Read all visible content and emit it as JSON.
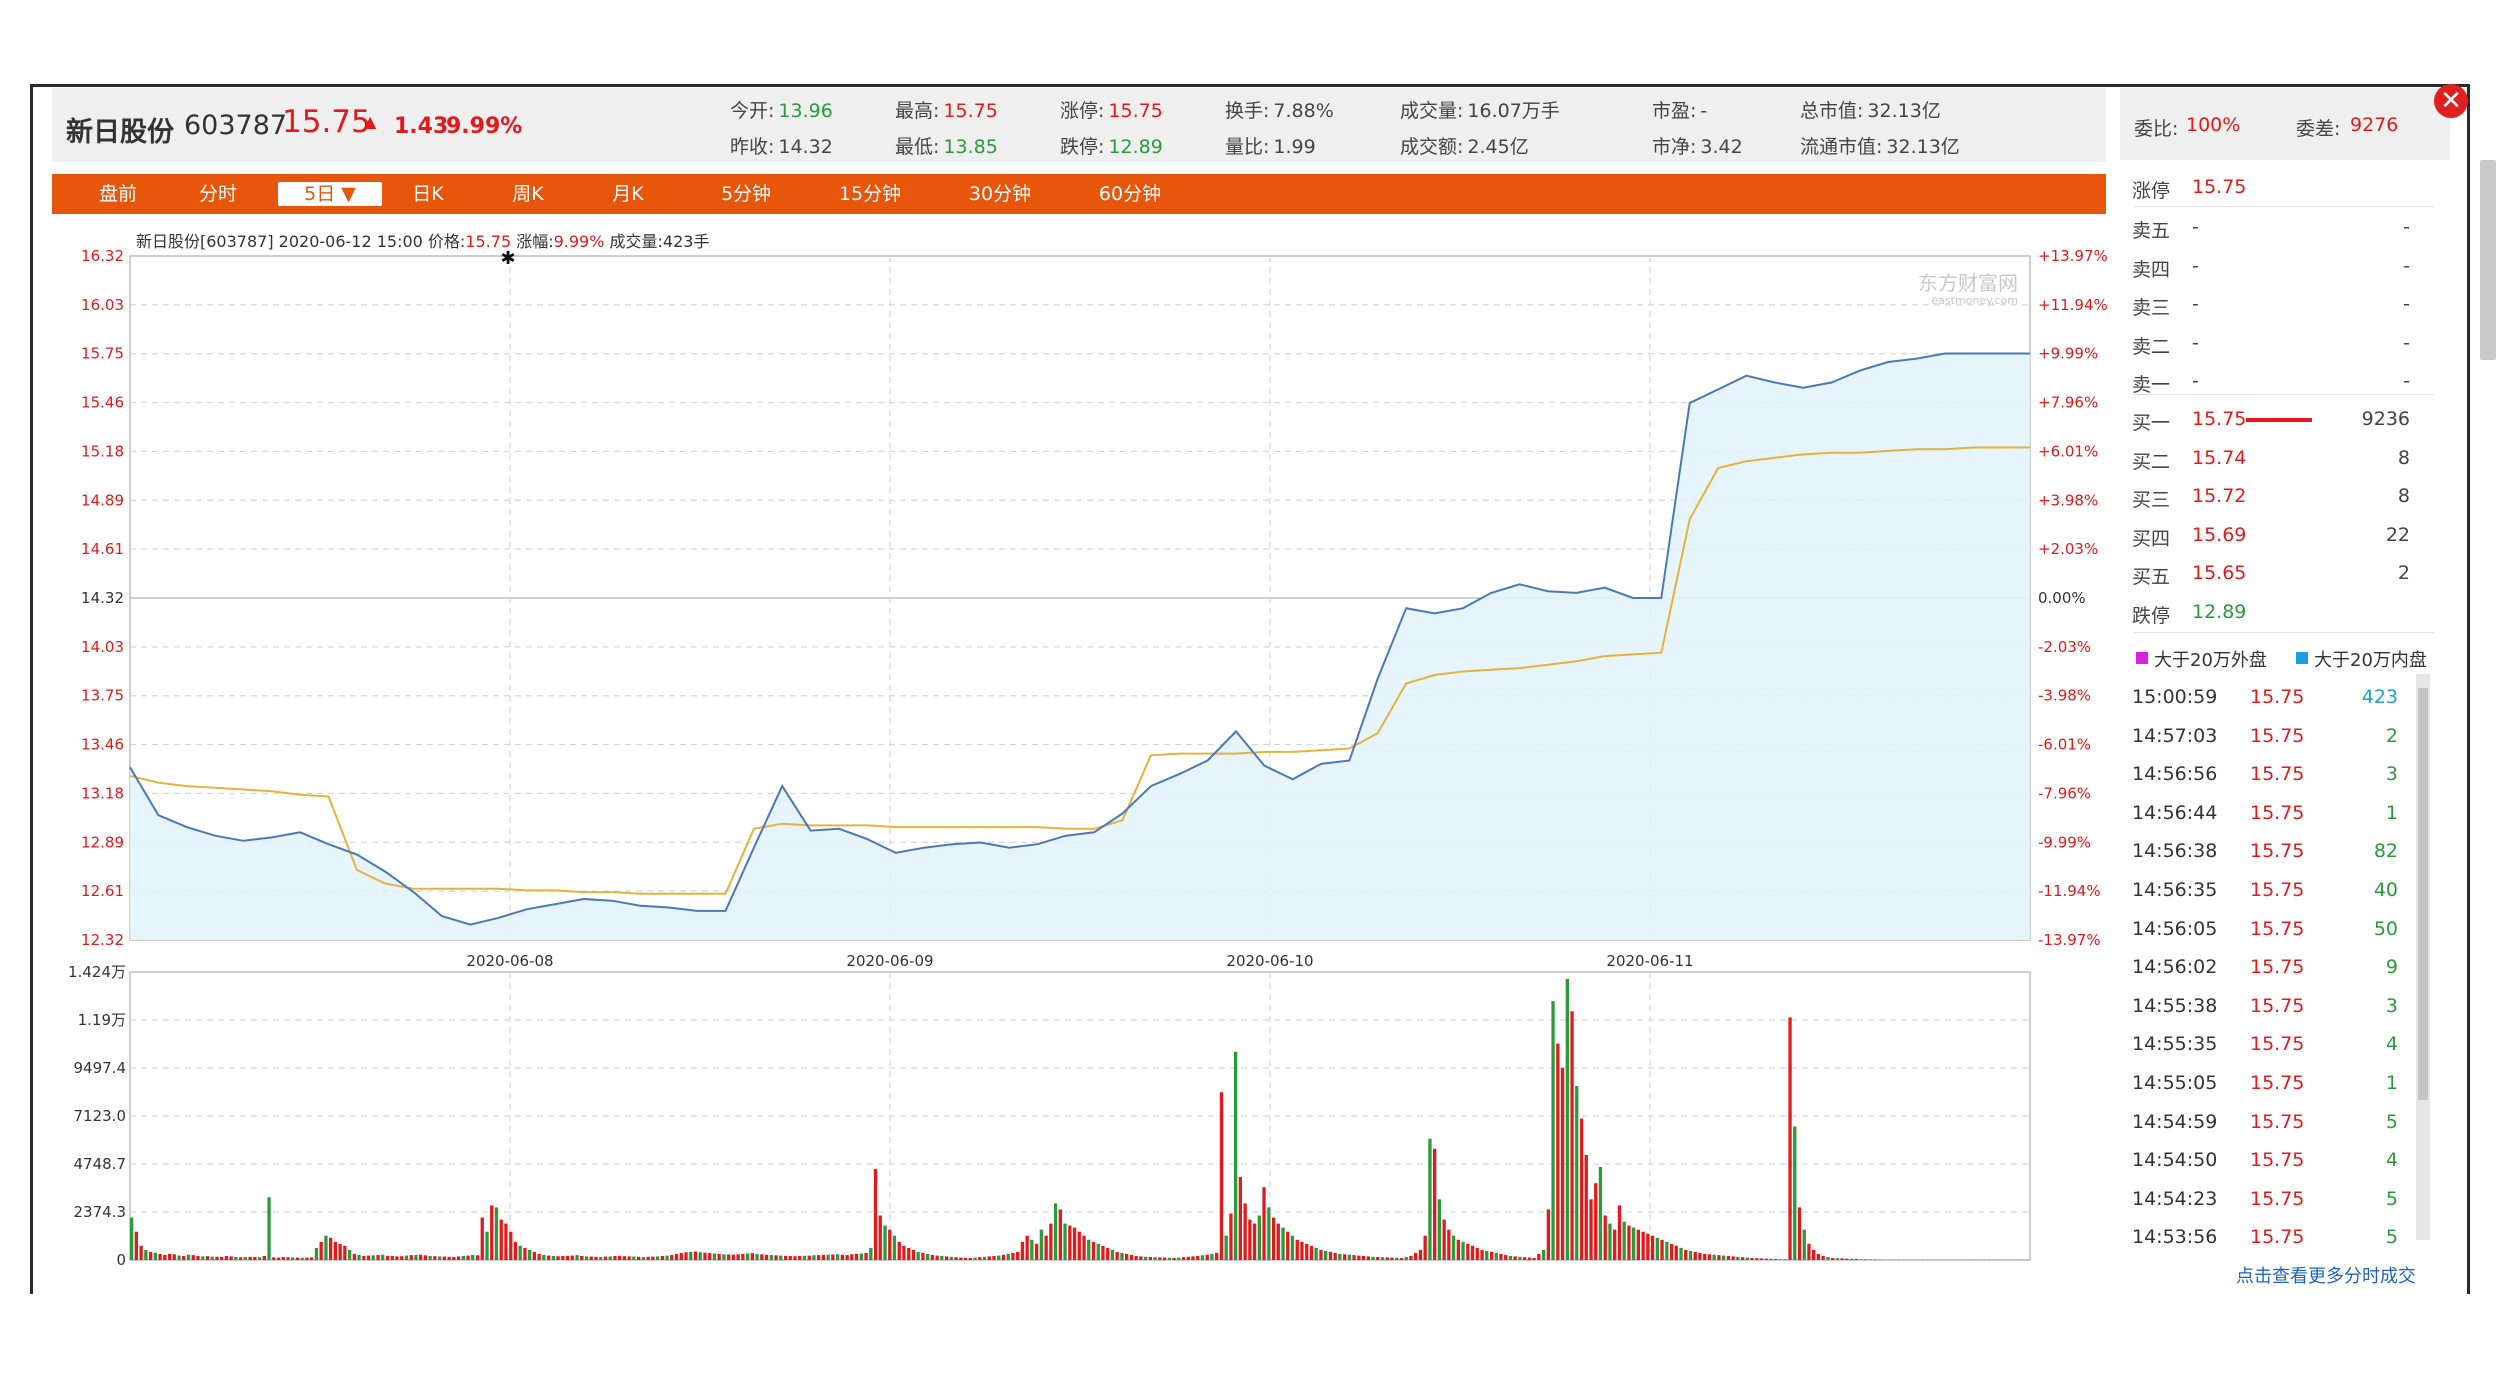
{
  "header": {
    "name": "新日股份",
    "code": "603787",
    "price": "15.75",
    "arrow": "▲",
    "change": "1.43",
    "pct": "9.99%",
    "quotes": [
      {
        "label": "今开:",
        "value": "13.96",
        "color": "green"
      },
      {
        "label": "昨收:",
        "value": "14.32",
        "color": "dark"
      },
      {
        "label": "最高:",
        "value": "15.75",
        "color": "red"
      },
      {
        "label": "最低:",
        "value": "13.85",
        "color": "green"
      },
      {
        "label": "涨停:",
        "value": "15.75",
        "color": "red"
      },
      {
        "label": "跌停:",
        "value": "12.89",
        "color": "green"
      },
      {
        "label": "换手:",
        "value": "7.88%",
        "color": "dark"
      },
      {
        "label": "量比:",
        "value": "1.99",
        "color": "dark"
      },
      {
        "label": "成交量:",
        "value": "16.07万手",
        "color": "dark"
      },
      {
        "label": "成交额:",
        "value": "2.45亿",
        "color": "dark"
      },
      {
        "label": "市盈:",
        "value": "-",
        "color": "dark"
      },
      {
        "label": "市净:",
        "value": "3.42",
        "color": "dark"
      },
      {
        "label": "总市值:",
        "value": "32.13亿",
        "color": "dark"
      },
      {
        "label": "流通市值:",
        "value": "32.13亿",
        "color": "dark"
      }
    ]
  },
  "tabs": [
    "盘前",
    "分时",
    "5日 ▼",
    "日K",
    "周K",
    "月K",
    "5分钟",
    "15分钟",
    "30分钟",
    "60分钟"
  ],
  "active_tab": 2,
  "info_line": {
    "prefix": "新日股份[603787]  2020-06-12 15:00  价格:",
    "price": "15.75",
    "mid": "  涨幅:",
    "pct": "9.99%",
    "suffix": "  成交量:423手"
  },
  "watermark": "东方财富网",
  "watermark_sub": "eastmoney.com",
  "colors": {
    "up": "#e3191c",
    "down": "#2a9a3a",
    "price_line": "#4a78b8",
    "avg_line": "#e6b23c",
    "fill": "#e3f3fb",
    "accent": "#e8560c"
  },
  "chart_data": [
    {
      "type": "line",
      "series": [
        {
          "values": [
            13.33,
            13.05,
            12.98,
            12.93,
            12.9,
            12.92,
            12.95,
            12.88,
            12.82,
            12.72,
            12.6,
            12.46,
            12.41,
            12.45,
            12.5,
            12.53,
            12.56,
            12.55,
            12.52,
            12.51,
            12.49,
            12.49,
            12.86,
            13.22,
            12.96,
            12.97,
            12.91,
            12.83,
            12.86,
            12.88,
            12.89,
            12.86,
            12.88,
            12.93,
            12.95,
            13.06,
            13.22,
            13.29,
            13.37,
            13.54,
            13.34,
            13.26,
            13.35,
            13.37,
            13.85,
            14.26,
            14.23,
            14.26,
            14.35,
            14.4,
            14.36,
            14.35,
            14.38,
            14.32,
            14.32,
            15.46,
            15.54,
            15.62,
            15.58,
            15.55,
            15.58,
            15.65,
            15.7,
            15.72,
            15.75,
            15.75,
            15.75,
            15.75
          ]
        },
        {
          "values": [
            13.28,
            13.24,
            13.22,
            13.21,
            13.2,
            13.19,
            13.17,
            13.16,
            12.73,
            12.65,
            12.62,
            12.62,
            12.62,
            12.62,
            12.61,
            12.61,
            12.6,
            12.6,
            12.59,
            12.59,
            12.59,
            12.59,
            12.97,
            13.0,
            12.99,
            12.99,
            12.99,
            12.98,
            12.98,
            12.98,
            12.98,
            12.98,
            12.98,
            12.97,
            12.97,
            13.02,
            13.4,
            13.41,
            13.41,
            13.41,
            13.42,
            13.42,
            13.43,
            13.44,
            13.53,
            13.82,
            13.87,
            13.89,
            13.9,
            13.91,
            13.93,
            13.95,
            13.98,
            13.99,
            14.0,
            14.78,
            15.08,
            15.12,
            15.14,
            15.16,
            15.17,
            15.17,
            15.18,
            15.19,
            15.19,
            15.2,
            15.2,
            15.2
          ]
        }
      ],
      "x_labels": [
        "2020-06-08",
        "2020-06-09",
        "2020-06-10",
        "2020-06-11"
      ],
      "y_ticks": [
        "16.32",
        "16.03",
        "15.75",
        "15.46",
        "15.18",
        "14.89",
        "14.61",
        "14.32",
        "14.03",
        "13.75",
        "13.46",
        "13.18",
        "12.89",
        "12.61",
        "12.32"
      ],
      "y_ticks_right": [
        "+13.97%",
        "+11.94%",
        "+9.99%",
        "+7.96%",
        "+6.01%",
        "+3.98%",
        "+2.03%",
        "0.00%",
        "-2.03%",
        "-3.98%",
        "-6.01%",
        "-7.96%",
        "-9.99%",
        "-11.94%",
        "-13.97%"
      ],
      "ylim": [
        12.32,
        16.32
      ],
      "prev_close": 14.32
    },
    {
      "type": "bar",
      "y_ticks": [
        "1.424万",
        "1.19万",
        "9497.4",
        "7123.0",
        "4748.7",
        "2374.3",
        "0"
      ],
      "ylim": [
        0,
        14243
      ],
      "values": [
        2100,
        1400,
        700,
        500,
        400,
        350,
        300,
        250,
        300,
        280,
        220,
        200,
        260,
        240,
        200,
        180,
        190,
        170,
        160,
        150,
        200,
        180,
        150,
        140,
        150,
        160,
        150,
        140,
        200,
        3100,
        130,
        120,
        150,
        140,
        130,
        120,
        110,
        120,
        130,
        600,
        900,
        1200,
        1100,
        900,
        800,
        700,
        500,
        300,
        250,
        200,
        220,
        230,
        250,
        260,
        210,
        200,
        180,
        190,
        220,
        240,
        250,
        260,
        230,
        200,
        190,
        180,
        170,
        160,
        150,
        180,
        200,
        220,
        250,
        230,
        2100,
        1400,
        2700,
        2600,
        2000,
        1800,
        1400,
        900,
        700,
        600,
        500,
        400,
        300,
        250,
        220,
        200,
        190,
        200,
        210,
        220,
        240,
        200,
        180,
        170,
        160,
        150,
        170,
        180,
        200,
        210,
        190,
        180,
        170,
        160,
        150,
        160,
        170,
        180,
        200,
        220,
        250,
        300,
        350,
        380,
        400,
        420,
        380,
        360,
        340,
        320,
        300,
        280,
        270,
        260,
        280,
        300,
        320,
        340,
        300,
        280,
        260,
        240,
        230,
        220,
        210,
        200,
        190,
        200,
        210,
        220,
        230,
        240,
        250,
        260,
        270,
        280,
        260,
        240,
        280,
        300,
        320,
        350,
        600,
        4500,
        2200,
        1700,
        1500,
        1200,
        900,
        700,
        600,
        500,
        400,
        350,
        300,
        250,
        220,
        200,
        180,
        160,
        140,
        120,
        110,
        100,
        120,
        140,
        160,
        180,
        200,
        220,
        260,
        300,
        350,
        400,
        900,
        1200,
        1000,
        800,
        1500,
        1200,
        1800,
        2800,
        2500,
        1800,
        1700,
        1600,
        1400,
        1200,
        1000,
        900,
        800,
        700,
        600,
        500,
        400,
        350,
        300,
        250,
        200,
        180,
        160,
        150,
        140,
        130,
        120,
        110,
        100,
        120,
        140,
        160,
        180,
        200,
        230,
        260,
        300,
        350,
        8300,
        1200,
        2300,
        10300,
        4100,
        2800,
        2000,
        1800,
        2200,
        3600,
        2600,
        2100,
        1800,
        1600,
        1400,
        1200,
        1000,
        900,
        800,
        700,
        600,
        500,
        450,
        400,
        350,
        300,
        280,
        260,
        240,
        220,
        200,
        180,
        160,
        150,
        140,
        130,
        120,
        110,
        100,
        150,
        200,
        350,
        500,
        1200,
        6000,
        5500,
        3000,
        2000,
        1500,
        1200,
        1000,
        900,
        800,
        700,
        600,
        500,
        450,
        400,
        350,
        300,
        250,
        200,
        180,
        160,
        140,
        120,
        100,
        300,
        500,
        2500,
        12800,
        10700,
        9500,
        13900,
        12300,
        8600,
        7000,
        5200,
        3000,
        3800,
        4600,
        2200,
        1800,
        1500,
        2700,
        1900,
        1700,
        1600,
        1500,
        1400,
        1300,
        1200,
        1100,
        1000,
        900,
        800,
        700,
        600,
        500,
        450,
        400,
        350,
        300,
        280,
        260,
        240,
        220,
        200,
        180,
        160,
        140,
        120,
        100,
        90,
        80,
        70,
        60,
        50,
        40,
        30,
        12000,
        6600,
        2600,
        1500,
        800,
        500,
        300,
        200,
        150,
        100,
        90,
        80,
        70,
        60,
        50,
        40,
        30,
        25,
        20,
        15,
        10,
        10,
        10,
        10,
        10,
        10,
        10,
        10,
        10,
        10,
        10,
        10,
        10,
        10,
        10,
        10,
        10,
        10,
        10,
        10,
        10,
        10,
        10,
        10,
        10,
        10,
        10,
        10,
        10,
        10,
        10
      ]
    }
  ],
  "orderbook": {
    "webi_label": "委比:",
    "webi": "100%",
    "wecha_label": "委差:",
    "wecha": "9276",
    "zhangting_label": "涨停",
    "zhangting": "15.75",
    "sells": [
      {
        "label": "卖五",
        "price": "-",
        "vol": "-"
      },
      {
        "label": "卖四",
        "price": "-",
        "vol": "-"
      },
      {
        "label": "卖三",
        "price": "-",
        "vol": "-"
      },
      {
        "label": "卖二",
        "price": "-",
        "vol": "-"
      },
      {
        "label": "卖一",
        "price": "-",
        "vol": "-"
      }
    ],
    "buys": [
      {
        "label": "买一",
        "price": "15.75",
        "vol": "9236"
      },
      {
        "label": "买二",
        "price": "15.74",
        "vol": "8"
      },
      {
        "label": "买三",
        "price": "15.72",
        "vol": "8"
      },
      {
        "label": "买四",
        "price": "15.69",
        "vol": "22"
      },
      {
        "label": "买五",
        "price": "15.65",
        "vol": "2"
      }
    ],
    "dieting_label": "跌停",
    "dieting": "12.89"
  },
  "trades_legend": {
    "out": "大于20万外盘",
    "in": "大于20万内盘"
  },
  "trades": [
    {
      "time": "15:00:59",
      "price": "15.75",
      "vol": "423",
      "blue": true
    },
    {
      "time": "14:57:03",
      "price": "15.75",
      "vol": "2"
    },
    {
      "time": "14:56:56",
      "price": "15.75",
      "vol": "3"
    },
    {
      "time": "14:56:44",
      "price": "15.75",
      "vol": "1"
    },
    {
      "time": "14:56:38",
      "price": "15.75",
      "vol": "82"
    },
    {
      "time": "14:56:35",
      "price": "15.75",
      "vol": "40"
    },
    {
      "time": "14:56:05",
      "price": "15.75",
      "vol": "50"
    },
    {
      "time": "14:56:02",
      "price": "15.75",
      "vol": "9"
    },
    {
      "time": "14:55:38",
      "price": "15.75",
      "vol": "3"
    },
    {
      "time": "14:55:35",
      "price": "15.75",
      "vol": "4"
    },
    {
      "time": "14:55:05",
      "price": "15.75",
      "vol": "1"
    },
    {
      "time": "14:54:59",
      "price": "15.75",
      "vol": "5"
    },
    {
      "time": "14:54:50",
      "price": "15.75",
      "vol": "4"
    },
    {
      "time": "14:54:23",
      "price": "15.75",
      "vol": "5"
    },
    {
      "time": "14:53:56",
      "price": "15.75",
      "vol": "5"
    }
  ],
  "more_link": "点击查看更多分时成交",
  "close_icon": "close-icon"
}
